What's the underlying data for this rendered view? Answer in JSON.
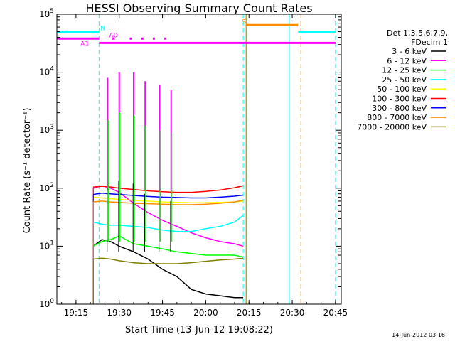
{
  "chart_data": {
    "type": "line",
    "title": "HESSI Observing Summary Count Rates",
    "xlabel": "Start Time (13-Jun-12 19:08:22)",
    "ylabel": "Count Rate (s⁻¹ detector⁻¹)",
    "y_scale": "log",
    "ylim": [
      1,
      100000
    ],
    "xlim": [
      "19:08:22",
      "20:47:00"
    ],
    "x_ticks": [
      "19:15",
      "19:30",
      "19:45",
      "20:00",
      "20:15",
      "20:30",
      "20:45"
    ],
    "y_ticks": [
      {
        "base": "10",
        "exp": "0"
      },
      {
        "base": "10",
        "exp": "1"
      },
      {
        "base": "10",
        "exp": "2"
      },
      {
        "base": "10",
        "exp": "3"
      },
      {
        "base": "10",
        "exp": "4"
      },
      {
        "base": "10",
        "exp": "5"
      }
    ],
    "legend_header": [
      "Det 1,3,5,6,7,9,",
      "FDecim 1"
    ],
    "legend_placement": "right",
    "series": [
      {
        "name": "3 - 6 keV",
        "color": "#000000",
        "points": [
          [
            "19:21",
            10
          ],
          [
            "19:24",
            13
          ],
          [
            "19:27",
            12
          ],
          [
            "19:30",
            10
          ],
          [
            "19:35",
            8
          ],
          [
            "19:40",
            6
          ],
          [
            "19:45",
            4
          ],
          [
            "19:50",
            3
          ],
          [
            "19:55",
            1.8
          ],
          [
            "20:00",
            1.5
          ],
          [
            "20:05",
            1.4
          ],
          [
            "20:10",
            1.3
          ],
          [
            "20:13",
            1.3
          ]
        ]
      },
      {
        "name": "6 - 12 keV",
        "color": "#ff00ff",
        "points": [
          [
            "19:21",
            100
          ],
          [
            "19:24",
            110
          ],
          [
            "19:27",
            100
          ],
          [
            "19:30",
            85
          ],
          [
            "19:35",
            55
          ],
          [
            "19:40",
            38
          ],
          [
            "19:45",
            28
          ],
          [
            "19:50",
            22
          ],
          [
            "19:55",
            17
          ],
          [
            "20:00",
            14
          ],
          [
            "20:05",
            12
          ],
          [
            "20:10",
            11
          ],
          [
            "20:13",
            10
          ]
        ]
      },
      {
        "name": "12 - 25 keV",
        "color": "#00ff00",
        "points": [
          [
            "19:21",
            10
          ],
          [
            "19:24",
            12
          ],
          [
            "19:27",
            13
          ],
          [
            "19:30",
            15
          ],
          [
            "19:35",
            11
          ],
          [
            "19:40",
            10
          ],
          [
            "19:45",
            9
          ],
          [
            "19:50",
            8
          ],
          [
            "19:55",
            7.5
          ],
          [
            "20:00",
            7
          ],
          [
            "20:05",
            7
          ],
          [
            "20:10",
            7
          ],
          [
            "20:13",
            6.5
          ]
        ]
      },
      {
        "name": "25 - 50 keV",
        "color": "#00ffff",
        "points": [
          [
            "19:21",
            26
          ],
          [
            "19:24",
            24
          ],
          [
            "19:27",
            23
          ],
          [
            "19:30",
            23
          ],
          [
            "19:35",
            22
          ],
          [
            "19:40",
            21
          ],
          [
            "19:45",
            19
          ],
          [
            "19:50",
            18
          ],
          [
            "19:55",
            18
          ],
          [
            "20:00",
            20
          ],
          [
            "20:05",
            22
          ],
          [
            "20:10",
            26
          ],
          [
            "20:13",
            34
          ]
        ]
      },
      {
        "name": "50 - 100 keV",
        "color": "#ffff00",
        "points": [
          [
            "19:21",
            70
          ],
          [
            "19:24",
            68
          ],
          [
            "19:27",
            66
          ],
          [
            "19:30",
            64
          ],
          [
            "19:35",
            62
          ],
          [
            "19:40",
            60
          ],
          [
            "19:45",
            58
          ],
          [
            "19:50",
            57
          ],
          [
            "19:55",
            56
          ],
          [
            "20:00",
            56
          ],
          [
            "20:05",
            57
          ],
          [
            "20:10",
            58
          ],
          [
            "20:13",
            60
          ]
        ]
      },
      {
        "name": "100 - 300 keV",
        "color": "#ff0000",
        "points": [
          [
            "19:21",
            105
          ],
          [
            "19:24",
            108
          ],
          [
            "19:27",
            105
          ],
          [
            "19:30",
            100
          ],
          [
            "19:35",
            95
          ],
          [
            "19:40",
            90
          ],
          [
            "19:45",
            87
          ],
          [
            "19:50",
            85
          ],
          [
            "19:55",
            85
          ],
          [
            "20:00",
            88
          ],
          [
            "20:05",
            93
          ],
          [
            "20:10",
            102
          ],
          [
            "20:13",
            110
          ]
        ]
      },
      {
        "name": "300 - 800 keV",
        "color": "#0000ff",
        "points": [
          [
            "19:21",
            78
          ],
          [
            "19:24",
            82
          ],
          [
            "19:27",
            80
          ],
          [
            "19:30",
            78
          ],
          [
            "19:35",
            75
          ],
          [
            "19:40",
            72
          ],
          [
            "19:45",
            70
          ],
          [
            "19:50",
            69
          ],
          [
            "19:55",
            68
          ],
          [
            "20:00",
            68
          ],
          [
            "20:05",
            70
          ],
          [
            "20:10",
            73
          ],
          [
            "20:13",
            76
          ]
        ]
      },
      {
        "name": "800 - 7000 keV",
        "color": "#ff8c00",
        "points": [
          [
            "19:21",
            58
          ],
          [
            "19:24",
            60
          ],
          [
            "19:27",
            58
          ],
          [
            "19:30",
            57
          ],
          [
            "19:35",
            55
          ],
          [
            "19:40",
            54
          ],
          [
            "19:45",
            53
          ],
          [
            "19:50",
            52
          ],
          [
            "19:55",
            52
          ],
          [
            "20:00",
            53
          ],
          [
            "20:05",
            55
          ],
          [
            "20:10",
            58
          ],
          [
            "20:13",
            62
          ]
        ]
      },
      {
        "name": "7000 - 20000 keV",
        "color": "#808000",
        "points": [
          [
            "19:21",
            6
          ],
          [
            "19:24",
            6.2
          ],
          [
            "19:27",
            6
          ],
          [
            "19:30",
            5.6
          ],
          [
            "19:35",
            5.2
          ],
          [
            "19:40",
            5
          ],
          [
            "19:45",
            5
          ],
          [
            "19:50",
            5
          ],
          [
            "19:55",
            5.2
          ],
          [
            "20:00",
            5.5
          ],
          [
            "20:05",
            5.8
          ],
          [
            "20:10",
            6
          ],
          [
            "20:13",
            6.2
          ]
        ]
      }
    ],
    "spikes": {
      "times": [
        "19:26",
        "19:30",
        "19:35",
        "19:39",
        "19:44",
        "19:48"
      ],
      "magenta_peaks": [
        8000,
        10000,
        10000,
        7000,
        6000,
        5000
      ],
      "green_peaks": [
        1500,
        2000,
        1800,
        1200,
        1000,
        900
      ]
    },
    "annotations": [
      {
        "label": "N",
        "time": "19:23",
        "color": "#00ffff"
      },
      {
        "label": "A1",
        "time": "19:21",
        "color": "#ff00ff"
      },
      {
        "label": "A0",
        "time": "19:26",
        "color": "#ff00ff"
      },
      {
        "label": "S",
        "time": "20:16",
        "color": "#ff8c00"
      }
    ],
    "bars": [
      {
        "color": "#00ffff",
        "level": 50000,
        "ranges": [
          [
            "19:08:22",
            "19:23"
          ],
          [
            "20:32",
            "20:45"
          ]
        ]
      },
      {
        "color": "#ff00ff",
        "level": 38000,
        "ranges": [
          [
            "19:08:22",
            "19:23"
          ]
        ]
      },
      {
        "color": "#ff00ff",
        "level": 32000,
        "ranges": [
          [
            "19:23",
            "20:45"
          ]
        ]
      },
      {
        "color": "#ff8c00",
        "level": 65000,
        "ranges": [
          [
            "20:14",
            "20:32"
          ]
        ]
      }
    ],
    "bar_markers": {
      "color": "#ff00ff",
      "level": 38000,
      "times": [
        "19:28",
        "19:34",
        "19:38",
        "19:42",
        "19:46"
      ]
    },
    "vlines": [
      {
        "time": "19:23",
        "color": "#00ffff",
        "dash": true
      },
      {
        "time": "20:13",
        "color": "#00ffff",
        "dash": true
      },
      {
        "time": "20:14",
        "color": "#808000",
        "dash": false
      },
      {
        "time": "20:29",
        "color": "#00ffff",
        "dash": false
      },
      {
        "time": "20:33",
        "color": "#ff8c00",
        "dash": true
      },
      {
        "time": "20:45",
        "color": "#00ffff",
        "dash": true
      }
    ],
    "grid": false
  },
  "footer": {
    "timestamp": "14-Jun-2012 03:16"
  }
}
